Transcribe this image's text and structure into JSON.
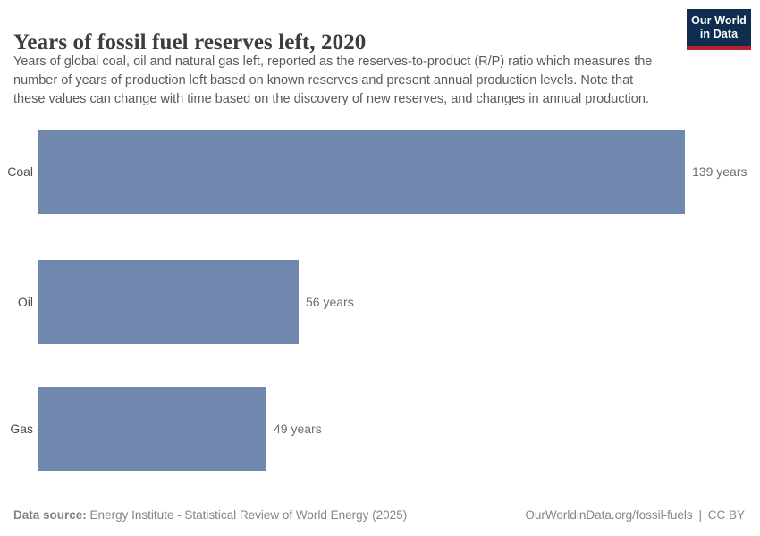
{
  "header": {
    "title": "Years of fossil fuel reserves left, 2020",
    "subtitle_lines": [
      "Years of global coal, oil and natural gas left, reported as the reserves-to-product (R/P) ratio which measures the",
      "number of years of production left based on known reserves and present annual production levels. Note that",
      "these values can change with time based on the discovery of new reserves, and changes in annual production."
    ]
  },
  "logo": {
    "line1": "Our World",
    "line2": "in Data"
  },
  "chart_data": {
    "type": "bar",
    "orientation": "horizontal",
    "title": "Years of fossil fuel reserves left, 2020",
    "categories": [
      "Coal",
      "Oil",
      "Gas"
    ],
    "values": [
      139,
      56,
      49
    ],
    "value_labels": [
      "139 years",
      "56 years",
      "49 years"
    ],
    "unit": "years",
    "xlim": [
      0,
      139
    ],
    "grid": false,
    "legend": "none",
    "bar_color": "#7087ae"
  },
  "footer": {
    "source_label": "Data source:",
    "source_text": "Energy Institute - Statistical Review of World Energy (2025)",
    "link_text": "OurWorldinData.org/fossil-fuels",
    "divider": "|",
    "license_text": "CC BY"
  }
}
